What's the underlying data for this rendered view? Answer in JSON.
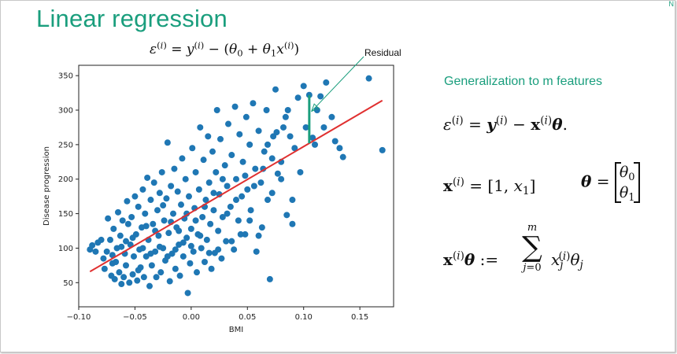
{
  "slide": {
    "title": "Linear regression",
    "corner_mark": "N",
    "residual_label": "Residual",
    "generalization_heading": "Generalization to m features"
  },
  "colors": {
    "accent": "#1a9e7d",
    "points": "#1f77b4",
    "fit_line": "#e03030",
    "residual": "#1a9e7d"
  },
  "chart_data": {
    "type": "scatter",
    "title": "",
    "xlabel": "BMI",
    "ylabel": "Disease progression",
    "xlim": [
      -0.1,
      0.18
    ],
    "ylim": [
      15,
      365
    ],
    "xticks": [
      -0.1,
      -0.05,
      0.0,
      0.05,
      0.1,
      0.15
    ],
    "xtick_labels": [
      "−0.10",
      "−0.05",
      "0.00",
      "0.05",
      "0.10",
      "0.15"
    ],
    "yticks": [
      50,
      100,
      150,
      200,
      250,
      300,
      350
    ],
    "ytick_labels": [
      "50",
      "100",
      "150",
      "200",
      "250",
      "300",
      "350"
    ],
    "grid": false,
    "fit_line": {
      "x": [
        -0.09,
        0.17
      ],
      "y": [
        66,
        314
      ]
    },
    "residual": {
      "x": 0.105,
      "y_point": 322,
      "y_fit": 252
    },
    "points": [
      [
        -0.09,
        98
      ],
      [
        -0.088,
        104
      ],
      [
        -0.085,
        95
      ],
      [
        -0.083,
        108
      ],
      [
        -0.08,
        112
      ],
      [
        -0.078,
        85
      ],
      [
        -0.077,
        70
      ],
      [
        -0.075,
        95
      ],
      [
        -0.074,
        143
      ],
      [
        -0.072,
        112
      ],
      [
        -0.071,
        60
      ],
      [
        -0.07,
        90
      ],
      [
        -0.069,
        128
      ],
      [
        -0.068,
        55
      ],
      [
        -0.067,
        80
      ],
      [
        -0.066,
        100
      ],
      [
        -0.065,
        152
      ],
      [
        -0.064,
        65
      ],
      [
        -0.063,
        118
      ],
      [
        -0.062,
        48
      ],
      [
        -0.061,
        140
      ],
      [
        -0.06,
        58
      ],
      [
        -0.059,
        92
      ],
      [
        -0.058,
        75
      ],
      [
        -0.057,
        168
      ],
      [
        -0.056,
        135
      ],
      [
        -0.055,
        50
      ],
      [
        -0.054,
        105
      ],
      [
        -0.053,
        145
      ],
      [
        -0.052,
        62
      ],
      [
        -0.051,
        88
      ],
      [
        -0.05,
        175
      ],
      [
        -0.049,
        120
      ],
      [
        -0.048,
        53
      ],
      [
        -0.047,
        160
      ],
      [
        -0.046,
        98
      ],
      [
        -0.045,
        72
      ],
      [
        -0.044,
        130
      ],
      [
        -0.043,
        185
      ],
      [
        -0.042,
        58
      ],
      [
        -0.041,
        150
      ],
      [
        -0.04,
        88
      ],
      [
        -0.039,
        202
      ],
      [
        -0.038,
        112
      ],
      [
        -0.037,
        45
      ],
      [
        -0.036,
        170
      ],
      [
        -0.035,
        75
      ],
      [
        -0.034,
        135
      ],
      [
        -0.033,
        195
      ],
      [
        -0.032,
        95
      ],
      [
        -0.031,
        58
      ],
      [
        -0.03,
        155
      ],
      [
        -0.029,
        118
      ],
      [
        -0.028,
        180
      ],
      [
        -0.027,
        65
      ],
      [
        -0.026,
        210
      ],
      [
        -0.025,
        100
      ],
      [
        -0.024,
        140
      ],
      [
        -0.023,
        82
      ],
      [
        -0.022,
        172
      ],
      [
        -0.021,
        253
      ],
      [
        -0.02,
        122
      ],
      [
        -0.019,
        52
      ],
      [
        -0.018,
        190
      ],
      [
        -0.017,
        92
      ],
      [
        -0.016,
        150
      ],
      [
        -0.015,
        215
      ],
      [
        -0.014,
        70
      ],
      [
        -0.013,
        130
      ],
      [
        -0.012,
        182
      ],
      [
        -0.011,
        105
      ],
      [
        -0.01,
        60
      ],
      [
        -0.009,
        163
      ],
      [
        -0.008,
        230
      ],
      [
        -0.007,
        88
      ],
      [
        -0.006,
        143
      ],
      [
        -0.005,
        200
      ],
      [
        -0.004,
        115
      ],
      [
        -0.003,
        35
      ],
      [
        -0.002,
        175
      ],
      [
        -0.001,
        78
      ],
      [
        0.0,
        128
      ],
      [
        0.001,
        245
      ],
      [
        0.002,
        95
      ],
      [
        0.003,
        158
      ],
      [
        0.004,
        210
      ],
      [
        0.005,
        65
      ],
      [
        0.006,
        120
      ],
      [
        0.007,
        185
      ],
      [
        0.008,
        275
      ],
      [
        0.009,
        100
      ],
      [
        0.01,
        145
      ],
      [
        0.011,
        228
      ],
      [
        0.012,
        80
      ],
      [
        0.013,
        170
      ],
      [
        0.014,
        112
      ],
      [
        0.015,
        262
      ],
      [
        0.016,
        195
      ],
      [
        0.017,
        135
      ],
      [
        0.018,
        70
      ],
      [
        0.019,
        240
      ],
      [
        0.02,
        155
      ],
      [
        0.021,
        93
      ],
      [
        0.022,
        210
      ],
      [
        0.023,
        300
      ],
      [
        0.024,
        125
      ],
      [
        0.025,
        178
      ],
      [
        0.026,
        258
      ],
      [
        0.027,
        85
      ],
      [
        0.028,
        145
      ],
      [
        0.03,
        220
      ],
      [
        0.031,
        110
      ],
      [
        0.032,
        190
      ],
      [
        0.033,
        280
      ],
      [
        0.035,
        160
      ],
      [
        0.036,
        235
      ],
      [
        0.038,
        98
      ],
      [
        0.039,
        305
      ],
      [
        0.04,
        200
      ],
      [
        0.042,
        140
      ],
      [
        0.043,
        265
      ],
      [
        0.045,
        175
      ],
      [
        0.046,
        225
      ],
      [
        0.048,
        120
      ],
      [
        0.049,
        290
      ],
      [
        0.05,
        185
      ],
      [
        0.052,
        250
      ],
      [
        0.053,
        155
      ],
      [
        0.055,
        310
      ],
      [
        0.057,
        215
      ],
      [
        0.058,
        95
      ],
      [
        0.06,
        270
      ],
      [
        0.062,
        195
      ],
      [
        0.063,
        130
      ],
      [
        0.065,
        240
      ],
      [
        0.067,
        300
      ],
      [
        0.068,
        170
      ],
      [
        0.07,
        55
      ],
      [
        0.072,
        230
      ],
      [
        0.073,
        262
      ],
      [
        0.075,
        330
      ],
      [
        0.077,
        208
      ],
      [
        0.08,
        225
      ],
      [
        0.082,
        275
      ],
      [
        0.085,
        148
      ],
      [
        0.086,
        300
      ],
      [
        0.088,
        262
      ],
      [
        0.09,
        135
      ],
      [
        0.092,
        245
      ],
      [
        0.095,
        318
      ],
      [
        0.097,
        210
      ],
      [
        0.1,
        335
      ],
      [
        0.102,
        275
      ],
      [
        0.105,
        322
      ],
      [
        0.108,
        260
      ],
      [
        0.11,
        250
      ],
      [
        0.112,
        300
      ],
      [
        0.115,
        320
      ],
      [
        0.118,
        275
      ],
      [
        0.12,
        340
      ],
      [
        0.125,
        290
      ],
      [
        0.128,
        255
      ],
      [
        0.132,
        245
      ],
      [
        0.135,
        232
      ],
      [
        0.158,
        346
      ],
      [
        0.17,
        242
      ],
      [
        -0.07,
        78
      ],
      [
        -0.062,
        102
      ],
      [
        -0.058,
        110
      ],
      [
        -0.052,
        115
      ],
      [
        -0.047,
        68
      ],
      [
        -0.043,
        100
      ],
      [
        -0.04,
        132
      ],
      [
        -0.036,
        92
      ],
      [
        -0.032,
        125
      ],
      [
        -0.028,
        102
      ],
      [
        -0.025,
        162
      ],
      [
        -0.021,
        88
      ],
      [
        -0.018,
        138
      ],
      [
        -0.014,
        98
      ],
      [
        -0.011,
        125
      ],
      [
        -0.007,
        108
      ],
      [
        -0.004,
        150
      ],
      [
        0.0,
        103
      ],
      [
        0.004,
        140
      ],
      [
        0.008,
        118
      ],
      [
        0.012,
        160
      ],
      [
        0.016,
        93
      ],
      [
        0.02,
        180
      ],
      [
        0.024,
        98
      ],
      [
        0.028,
        200
      ],
      [
        0.032,
        150
      ],
      [
        0.036,
        110
      ],
      [
        0.04,
        170
      ],
      [
        0.044,
        120
      ],
      [
        0.048,
        205
      ],
      [
        0.052,
        140
      ],
      [
        0.056,
        190
      ],
      [
        0.06,
        118
      ],
      [
        0.064,
        215
      ],
      [
        0.068,
        250
      ],
      [
        0.072,
        180
      ],
      [
        0.076,
        268
      ],
      [
        0.08,
        200
      ],
      [
        0.084,
        290
      ],
      [
        0.09,
        170
      ]
    ]
  }
}
